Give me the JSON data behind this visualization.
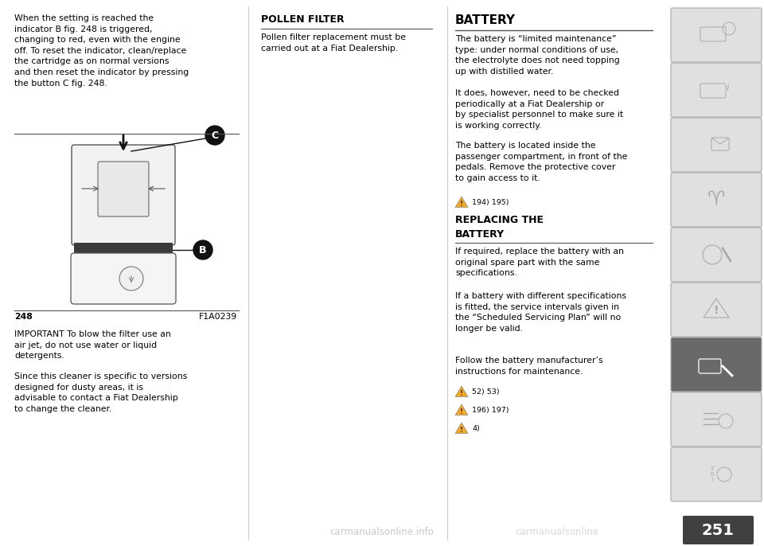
{
  "bg_color": "#ffffff",
  "page_width": 9.6,
  "page_height": 6.86,
  "dpi": 100,
  "left_col": {
    "intro_text": "When the setting is reached the\nindicator B fig. 248 is triggered,\nchanging to red, even with the engine\noff. To reset the indicator, clean/replace\nthe cartridge as on normal versions\nand then reset the indicator by pressing\nthe button C fig. 248.",
    "figure_caption": "248",
    "figure_code": "F1A0239",
    "important_text": "IMPORTANT To blow the filter use an\nair jet, do not use water or liquid\ndetergents.",
    "since_text": "Since this cleaner is specific to versions\ndesigned for dusty areas, it is\nadvisable to contact a Fiat Dealership\nto change the cleaner."
  },
  "middle_col": {
    "title": "POLLEN FILTER",
    "body": "Pollen filter replacement must be\ncarried out at a Fiat Dealership."
  },
  "right_col": {
    "title1": "BATTERY",
    "body1": "The battery is “limited maintenance”\ntype: under normal conditions of use,\nthe electrolyte does not need topping\nup with distilled water.",
    "body2": "It does, however, need to be checked\nperiodically at a Fiat Dealership or\nby specialist personnel to make sure it\nis working correctly.",
    "body3": "The battery is located inside the\npassenger compartment, in front of the\npedals. Remove the protective cover\nto gain access to it.",
    "warning1": "194) 195)",
    "title2": "REPLACING THE\nBATTERY",
    "body4": "If required, replace the battery with an\noriginal spare part with the same\nspecifications.",
    "body5": "If a battery with different specifications\nis fitted, the service intervals given in\nthe “Scheduled Servicing Plan” will no\nlonger be valid.",
    "body6": "Follow the battery manufacturer’s\ninstructions for maintenance.",
    "warning2": "52) 53)",
    "warning3": "196) 197)",
    "warning4": "4)"
  },
  "footer": {
    "watermark": "carmanualsonline",
    "page_num": "251"
  }
}
